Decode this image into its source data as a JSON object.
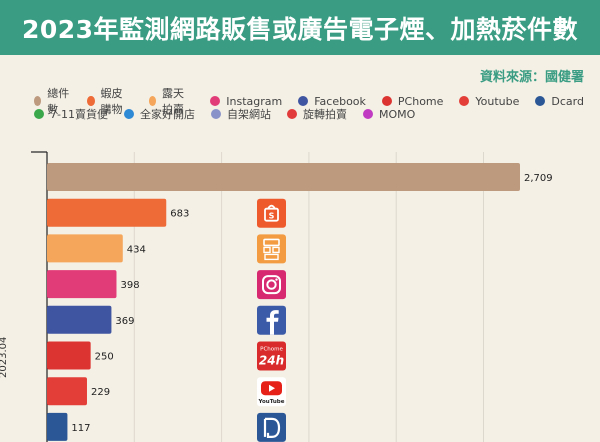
{
  "title": "2023年監測網路販售或廣告電子煙、加熱菸件數",
  "source": "資料來源：國健署",
  "legend": [
    {
      "label": "總件數",
      "color": "#bd9a7e"
    },
    {
      "label": "蝦皮購物",
      "color": "#ee6a36"
    },
    {
      "label": "露天拍賣",
      "color": "#f5a65a"
    },
    {
      "label": "Instagram",
      "color": "#e23c78"
    },
    {
      "label": "Facebook",
      "color": "#3f55a1"
    },
    {
      "label": "PChome",
      "color": "#dc3430"
    },
    {
      "label": "Youtube",
      "color": "#e33e38"
    },
    {
      "label": "Dcard",
      "color": "#2b5796"
    },
    {
      "label": "7-11賣貨便",
      "color": "#3aa84a"
    },
    {
      "label": "全家好開店",
      "color": "#2f8ad6"
    },
    {
      "label": "自架網站",
      "color": "#8a93c9"
    },
    {
      "label": "旋轉拍賣",
      "color": "#e23b3b"
    },
    {
      "label": "MOMO",
      "color": "#c03bc2"
    }
  ],
  "chart_data": {
    "type": "bar",
    "orientation": "horizontal",
    "period": "2023.04",
    "categories": [
      "總件數",
      "蝦皮購物",
      "露天拍賣",
      "Instagram",
      "Facebook",
      "PChome",
      "Youtube",
      "Dcard"
    ],
    "values": [
      2709,
      683,
      434,
      398,
      369,
      250,
      229,
      117
    ],
    "value_labels": [
      "2,709",
      "683",
      "434",
      "398",
      "369",
      "250",
      "229",
      "117"
    ],
    "colors": [
      "#bd9a7e",
      "#ee6a36",
      "#f5a65a",
      "#e23c78",
      "#3f55a1",
      "#dc3430",
      "#e33e38",
      "#2b5796"
    ],
    "icons": [
      "",
      "shopee-icon",
      "ruten-icon",
      "instagram-icon",
      "facebook-icon",
      "pchome-icon",
      "youtube-icon",
      "dcard-icon"
    ],
    "icon_texts": {
      "pchome-icon": [
        "PChome",
        "24h"
      ],
      "youtube-icon": [
        "YouTube"
      ]
    },
    "xlim": [
      0,
      2750
    ],
    "grid": true
  }
}
